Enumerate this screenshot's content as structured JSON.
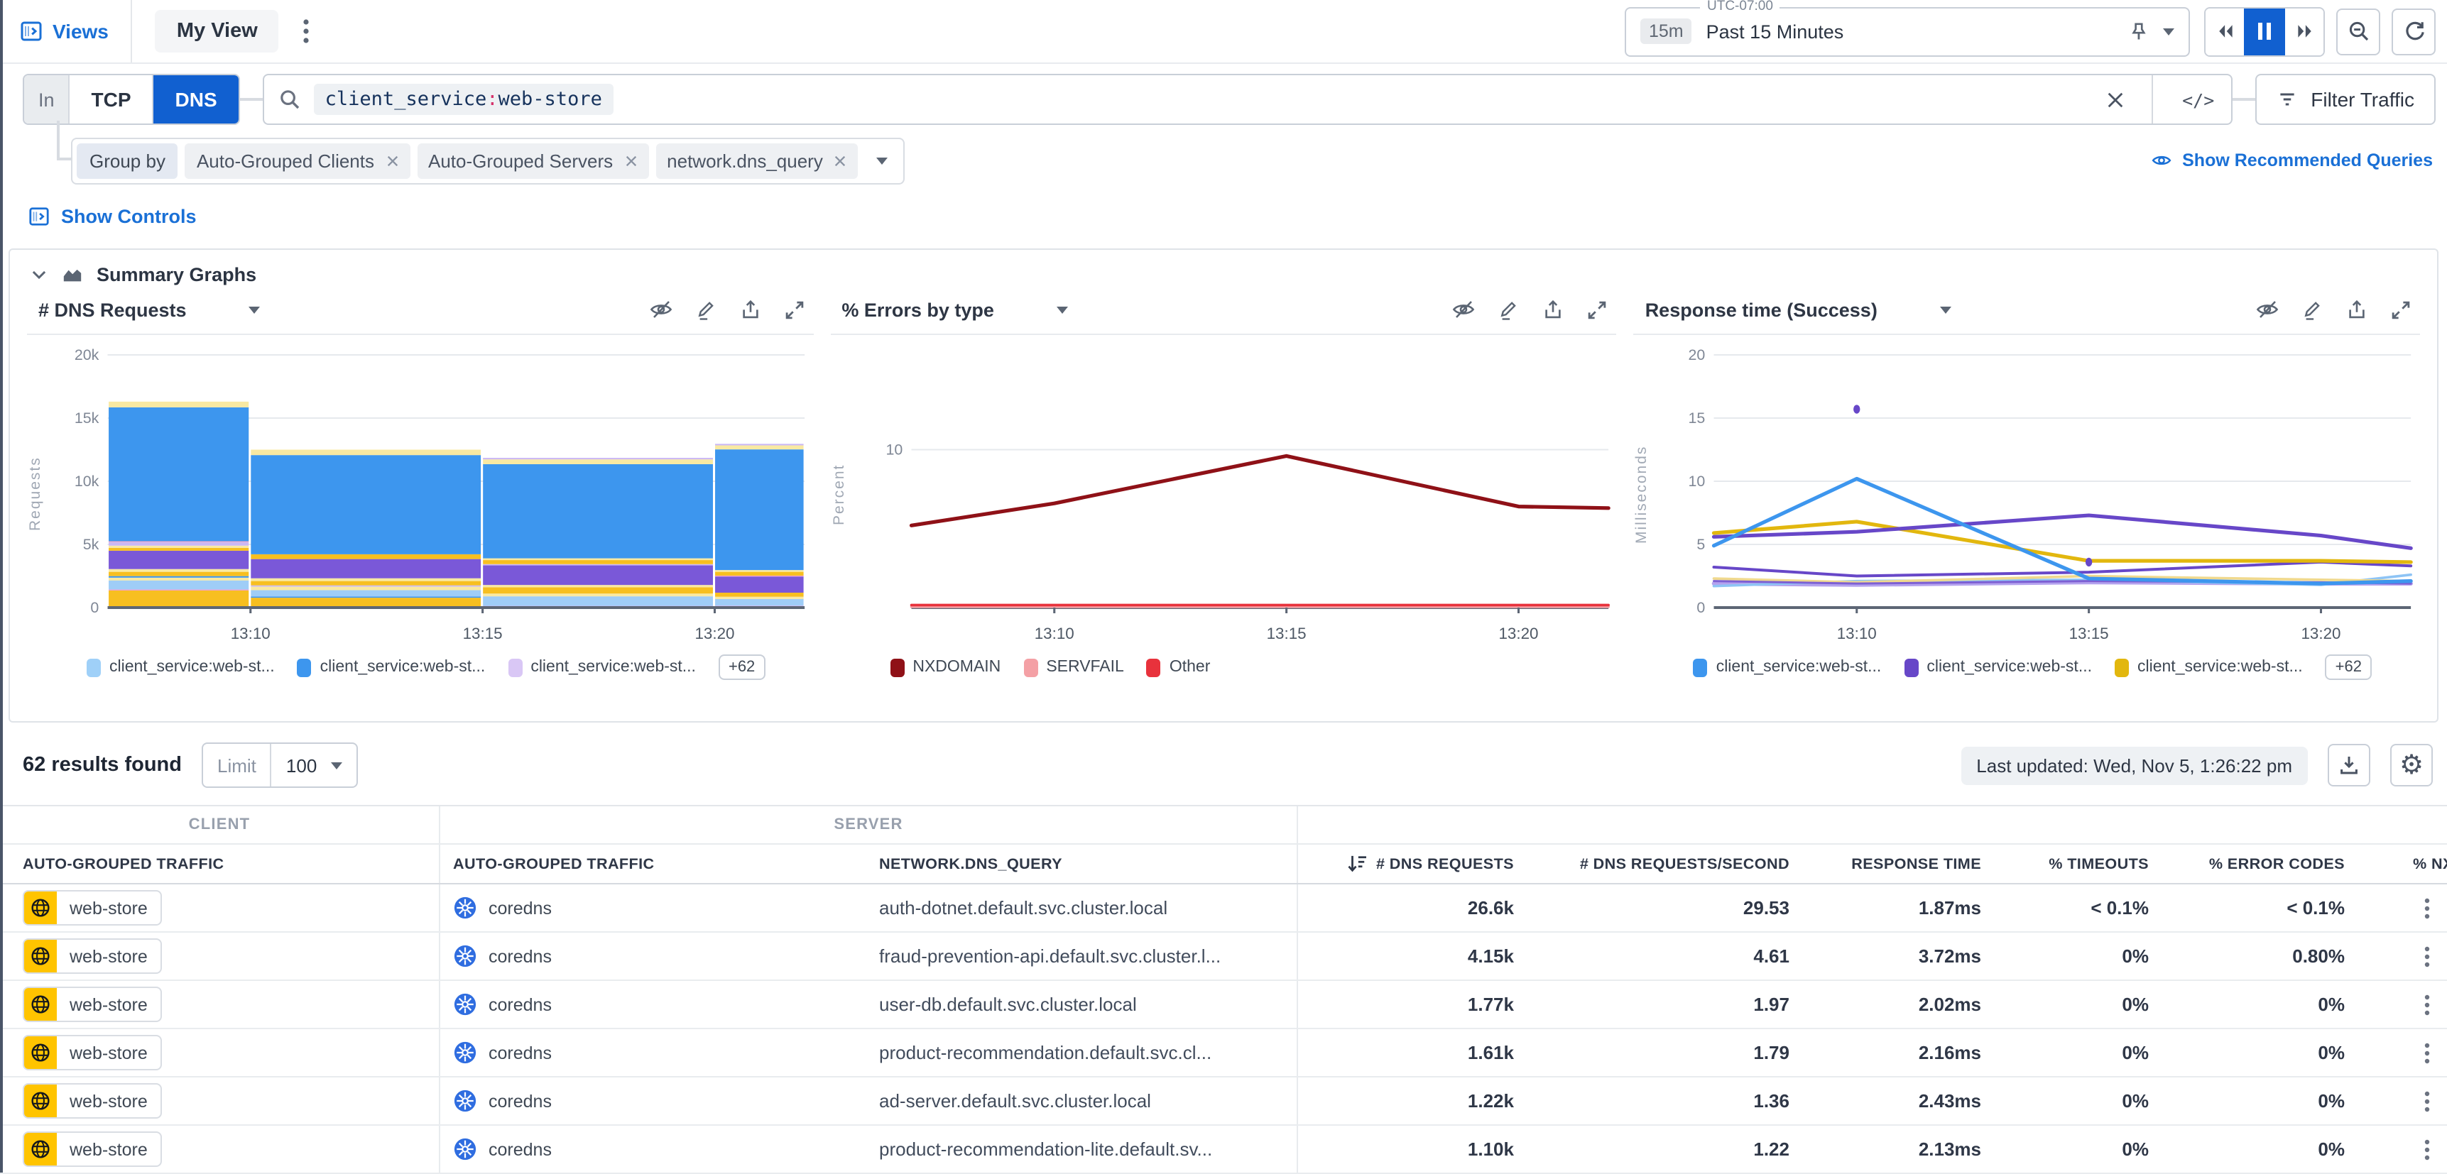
{
  "header": {
    "views_label": "Views",
    "tab_label": "My View"
  },
  "time_controls": {
    "timezone_label": "UTC-07:00",
    "range_short": "15m",
    "range_label": "Past 15 Minutes"
  },
  "search": {
    "scope_label": "In",
    "protocols": [
      {
        "label": "TCP",
        "active": false
      },
      {
        "label": "DNS",
        "active": true
      }
    ],
    "query": {
      "facet": "client_service",
      "separator": ":",
      "value": "web-store"
    },
    "code_toggle_label": "</>",
    "filter_button_label": "Filter Traffic"
  },
  "group_by": {
    "label": "Group by",
    "tags": [
      "Auto-Grouped Clients",
      "Auto-Grouped Servers",
      "network.dns_query"
    ]
  },
  "links": {
    "show_recommended_queries": "Show Recommended Queries",
    "show_controls": "Show Controls"
  },
  "summary_section": {
    "title": "Summary Graphs"
  },
  "icons": {
    "views_panel": "sidebar-toggle-square",
    "time_pin": "pushpin",
    "rewind": "double-triangle-left",
    "pause": "pause-bars",
    "forward": "double-triangle-right",
    "zoom_out": "magnifier-minus",
    "refresh": "circular-arrow",
    "search": "magnifier",
    "clear": "x",
    "filter": "funnel-lines",
    "hide_graph": "eye-slash",
    "edit_graph": "pencil",
    "export_graph": "up-arrow-from-tray",
    "expand_graph": "diagonal-expand-arrows",
    "recommended": "eye",
    "summary_chart": "area-chart",
    "download": "down-arrow-to-tray",
    "settings": "gear",
    "client": "globe-on-yellow",
    "server": "kubernetes-wheel-blue",
    "row_actions": "vertical-kebab",
    "sort": "arrow-down-with-bars"
  },
  "chart_data": [
    {
      "type": "bar",
      "stacked": true,
      "title": "# DNS Requests",
      "ylabel": "Requests",
      "ylim": [
        0,
        20000
      ],
      "yticks": [
        {
          "v": 0,
          "label": "0"
        },
        {
          "v": 5000,
          "label": "5k"
        },
        {
          "v": 10000,
          "label": "10k"
        },
        {
          "v": 15000,
          "label": "15k"
        },
        {
          "v": 20000,
          "label": "20k"
        }
      ],
      "xticks": [
        {
          "pos": 0.205,
          "label": "13:10"
        },
        {
          "pos": 0.538,
          "label": "13:15"
        },
        {
          "pos": 0.871,
          "label": "13:20"
        }
      ],
      "bars": [
        {
          "from": 0,
          "to": 0.204,
          "total": 16300,
          "segments": [
            [
              "#f7bf20",
              1350
            ],
            [
              "#f2a0c8",
              80
            ],
            [
              "#9fcdf7",
              720
            ],
            [
              "#f9e9a2",
              220
            ],
            [
              "#3d96ee",
              120
            ],
            [
              "#f7bf20",
              340
            ],
            [
              "#f9e9a2",
              220
            ],
            [
              "#7a58d8",
              1450
            ],
            [
              "#f7bf20",
              220
            ],
            [
              "#f9e9a2",
              180
            ],
            [
              "#cbb8f4",
              280
            ],
            [
              "#f2a0c8",
              70
            ],
            [
              "#3d96ee",
              10600
            ],
            [
              "#f9e9a2",
              450
            ]
          ]
        },
        {
          "from": 0.204,
          "to": 0.537,
          "total": 12500,
          "segments": [
            [
              "#f7bf20",
              780
            ],
            [
              "#3d96ee",
              100
            ],
            [
              "#9fcdf7",
              500
            ],
            [
              "#f9e9a2",
              280
            ],
            [
              "#cbb8f4",
              100
            ],
            [
              "#f7bf20",
              340
            ],
            [
              "#f9e9a2",
              220
            ],
            [
              "#7a58d8",
              1520
            ],
            [
              "#f7bf20",
              380
            ],
            [
              "#3d96ee",
              7850
            ],
            [
              "#f9e9a2",
              430
            ]
          ]
        },
        {
          "from": 0.537,
          "to": 0.87,
          "total": 11850,
          "segments": [
            [
              "#f2a0c8",
              60
            ],
            [
              "#cbb8f4",
              80
            ],
            [
              "#9fcdf7",
              750
            ],
            [
              "#f9e9a2",
              220
            ],
            [
              "#f7bf20",
              500
            ],
            [
              "#f9e9a2",
              180
            ],
            [
              "#7a58d8",
              1550
            ],
            [
              "#cbb8f4",
              100
            ],
            [
              "#f7bf20",
              320
            ],
            [
              "#f9e9a2",
              140
            ],
            [
              "#3d96ee",
              7450
            ],
            [
              "#f9e9a2",
              380
            ],
            [
              "#cbb8f4",
              120
            ]
          ]
        },
        {
          "from": 0.87,
          "to": 1.0,
          "total": 12960,
          "segments": [
            [
              "#f2a0c8",
              80
            ],
            [
              "#cbb8f4",
              80
            ],
            [
              "#9fcdf7",
              520
            ],
            [
              "#f9e9a2",
              180
            ],
            [
              "#f7bf20",
              320
            ],
            [
              "#7a58d8",
              1280
            ],
            [
              "#f2a0c8",
              70
            ],
            [
              "#f7bf20",
              300
            ],
            [
              "#f9e9a2",
              140
            ],
            [
              "#3d96ee",
              9550
            ],
            [
              "#f9e9a2",
              320
            ],
            [
              "#cbb8f4",
              120
            ]
          ]
        }
      ],
      "legend": [
        {
          "color": "#9fd0f8",
          "label": "client_service:web-st..."
        },
        {
          "color": "#3d96ee",
          "label": "client_service:web-st..."
        },
        {
          "color": "#d9c7f5",
          "label": "client_service:web-st..."
        }
      ],
      "legend_overflow": "+62"
    },
    {
      "type": "line",
      "title": "% Errors by type",
      "ylabel": "Percent",
      "ylim": [
        0,
        16
      ],
      "yticks": [
        {
          "v": 10,
          "label": "10"
        }
      ],
      "xticks": [
        {
          "pos": 0.205,
          "label": "13:10"
        },
        {
          "pos": 0.538,
          "label": "13:15"
        },
        {
          "pos": 0.871,
          "label": "13:20"
        }
      ],
      "x": [
        0,
        0.205,
        0.538,
        0.871,
        1
      ],
      "series": [
        {
          "name": "NXDOMAIN",
          "color": "#8f1117",
          "width": 2.6,
          "values": [
            5.2,
            6.6,
            9.6,
            6.4,
            6.3
          ]
        },
        {
          "name": "SERVFAIL",
          "color": "#f4a0a5",
          "width": 1.8,
          "values": [
            0.05,
            0.05,
            0.05,
            0.05,
            0.05
          ]
        },
        {
          "name": "Other",
          "color": "#e8323c",
          "width": 1.8,
          "values": [
            0.16,
            0.16,
            0.16,
            0.16,
            0.16
          ]
        }
      ],
      "legend": [
        {
          "color": "#8f1117",
          "label": "NXDOMAIN"
        },
        {
          "color": "#f4a0a5",
          "label": "SERVFAIL"
        },
        {
          "color": "#e8323c",
          "label": "Other"
        }
      ]
    },
    {
      "type": "line",
      "title": "Response time (Success)",
      "ylabel": "Milliseconds",
      "ylim": [
        0,
        20
      ],
      "yticks": [
        {
          "v": 0,
          "label": "0"
        },
        {
          "v": 5,
          "label": "5"
        },
        {
          "v": 10,
          "label": "10"
        },
        {
          "v": 15,
          "label": "15"
        },
        {
          "v": 20,
          "label": "20"
        }
      ],
      "xticks": [
        {
          "pos": 0.205,
          "label": "13:10"
        },
        {
          "pos": 0.538,
          "label": "13:15"
        },
        {
          "pos": 0.871,
          "label": "13:20"
        }
      ],
      "x": [
        0,
        0.205,
        0.538,
        0.871,
        1
      ],
      "series": [
        {
          "color": "#b4a2ee",
          "width": 2.8,
          "values": [
            1.9,
            1.8,
            2.0,
            1.9,
            1.9
          ]
        },
        {
          "color": "#8ec4f5",
          "width": 1.8,
          "values": [
            1.7,
            2.1,
            2.2,
            1.8,
            2.6
          ]
        },
        {
          "color": "#f0d98e",
          "width": 1.8,
          "values": [
            2.3,
            2.0,
            2.5,
            2.2,
            2.1
          ]
        },
        {
          "color": "#7d5fd3",
          "width": 1.5,
          "values": [
            2.1,
            1.9,
            2.1,
            2.0,
            1.9
          ]
        },
        {
          "color": "#6747c8",
          "width": 2.0,
          "values": [
            3.2,
            2.5,
            2.8,
            3.6,
            3.3
          ]
        },
        {
          "color": "#e2b70e",
          "width": 2.6,
          "values": [
            5.9,
            6.8,
            3.7,
            3.7,
            3.6
          ]
        },
        {
          "color": "#6747c8",
          "width": 2.6,
          "values": [
            5.6,
            6.0,
            7.3,
            5.7,
            4.7
          ]
        },
        {
          "color": "#3d96ee",
          "width": 2.6,
          "values": [
            4.9,
            10.2,
            2.3,
            1.9,
            2.1
          ]
        }
      ],
      "points": [
        {
          "x": 0.205,
          "v": 15.7,
          "color": "#6747c8"
        },
        {
          "x": 0.538,
          "v": 3.6,
          "color": "#6747c8"
        }
      ],
      "legend": [
        {
          "color": "#3d96ee",
          "label": "client_service:web-st..."
        },
        {
          "color": "#6747c8",
          "label": "client_service:web-st..."
        },
        {
          "color": "#e2b70e",
          "label": "client_service:web-st..."
        }
      ],
      "legend_overflow": "+62"
    }
  ],
  "results_bar": {
    "results_text": "62 results found",
    "limit_label": "Limit",
    "limit_value": "100",
    "last_updated": "Last updated: Wed, Nov 5, 1:26:22 pm"
  },
  "table": {
    "group_headers": [
      "CLIENT",
      "SERVER"
    ],
    "columns": [
      "AUTO-GROUPED TRAFFIC",
      "AUTO-GROUPED TRAFFIC",
      "NETWORK.DNS_QUERY",
      "# DNS REQUESTS",
      "# DNS REQUESTS/SECOND",
      "RESPONSE TIME",
      "% TIMEOUTS",
      "% ERROR CODES",
      "% NXDOMAIN"
    ],
    "sort": {
      "column": "# DNS REQUESTS",
      "direction": "desc"
    },
    "rows": [
      {
        "client": "web-store",
        "server": "coredns",
        "dns_query": "auth-dotnet.default.svc.cluster.local",
        "dns_requests": "26.6k",
        "dns_requests_per_second": "29.53",
        "response_time": "1.87ms",
        "timeouts": "< 0.1%",
        "error_codes": "< 0.1%"
      },
      {
        "client": "web-store",
        "server": "coredns",
        "dns_query": "fraud-prevention-api.default.svc.cluster.l...",
        "dns_requests": "4.15k",
        "dns_requests_per_second": "4.61",
        "response_time": "3.72ms",
        "timeouts": "0%",
        "error_codes": "0.80%"
      },
      {
        "client": "web-store",
        "server": "coredns",
        "dns_query": "user-db.default.svc.cluster.local",
        "dns_requests": "1.77k",
        "dns_requests_per_second": "1.97",
        "response_time": "2.02ms",
        "timeouts": "0%",
        "error_codes": "0%"
      },
      {
        "client": "web-store",
        "server": "coredns",
        "dns_query": "product-recommendation.default.svc.cl...",
        "dns_requests": "1.61k",
        "dns_requests_per_second": "1.79",
        "response_time": "2.16ms",
        "timeouts": "0%",
        "error_codes": "0%"
      },
      {
        "client": "web-store",
        "server": "coredns",
        "dns_query": "ad-server.default.svc.cluster.local",
        "dns_requests": "1.22k",
        "dns_requests_per_second": "1.36",
        "response_time": "2.43ms",
        "timeouts": "0%",
        "error_codes": "0%"
      },
      {
        "client": "web-store",
        "server": "coredns",
        "dns_query": "product-recommendation-lite.default.sv...",
        "dns_requests": "1.10k",
        "dns_requests_per_second": "1.22",
        "response_time": "2.13ms",
        "timeouts": "0%",
        "error_codes": "0%"
      }
    ]
  }
}
